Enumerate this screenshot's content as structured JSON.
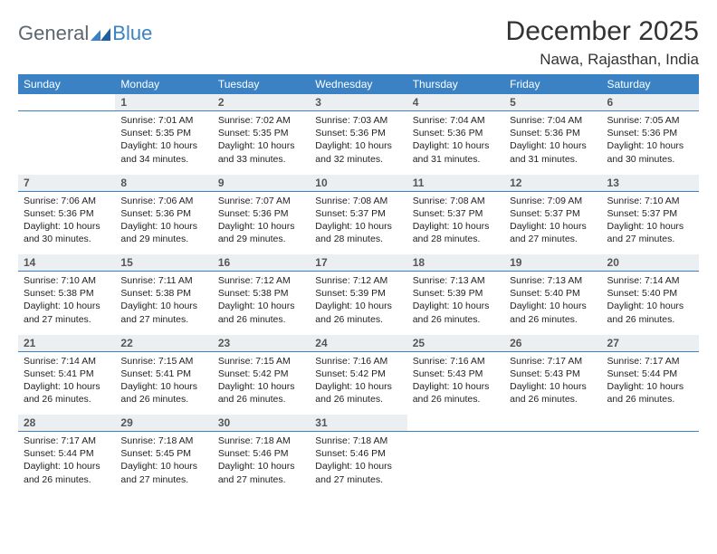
{
  "brand": {
    "general": "General",
    "blue": "Blue"
  },
  "title": "December 2025",
  "location": "Nawa, Rajasthan, India",
  "colors": {
    "header_bg": "#3b82c4",
    "header_text": "#ffffff",
    "daynum_bg": "#eceff1",
    "daynum_text": "#555555",
    "body_text": "#222222",
    "page_bg": "#ffffff",
    "logo_gray": "#5b6670",
    "logo_blue": "#3b82c4"
  },
  "weekdays": [
    "Sunday",
    "Monday",
    "Tuesday",
    "Wednesday",
    "Thursday",
    "Friday",
    "Saturday"
  ],
  "weeks": [
    {
      "nums": [
        "",
        "1",
        "2",
        "3",
        "4",
        "5",
        "6"
      ],
      "cells": [
        null,
        {
          "sunrise": "7:01 AM",
          "sunset": "5:35 PM",
          "daylight": "10 hours and 34 minutes."
        },
        {
          "sunrise": "7:02 AM",
          "sunset": "5:35 PM",
          "daylight": "10 hours and 33 minutes."
        },
        {
          "sunrise": "7:03 AM",
          "sunset": "5:36 PM",
          "daylight": "10 hours and 32 minutes."
        },
        {
          "sunrise": "7:04 AM",
          "sunset": "5:36 PM",
          "daylight": "10 hours and 31 minutes."
        },
        {
          "sunrise": "7:04 AM",
          "sunset": "5:36 PM",
          "daylight": "10 hours and 31 minutes."
        },
        {
          "sunrise": "7:05 AM",
          "sunset": "5:36 PM",
          "daylight": "10 hours and 30 minutes."
        }
      ]
    },
    {
      "nums": [
        "7",
        "8",
        "9",
        "10",
        "11",
        "12",
        "13"
      ],
      "cells": [
        {
          "sunrise": "7:06 AM",
          "sunset": "5:36 PM",
          "daylight": "10 hours and 30 minutes."
        },
        {
          "sunrise": "7:06 AM",
          "sunset": "5:36 PM",
          "daylight": "10 hours and 29 minutes."
        },
        {
          "sunrise": "7:07 AM",
          "sunset": "5:36 PM",
          "daylight": "10 hours and 29 minutes."
        },
        {
          "sunrise": "7:08 AM",
          "sunset": "5:37 PM",
          "daylight": "10 hours and 28 minutes."
        },
        {
          "sunrise": "7:08 AM",
          "sunset": "5:37 PM",
          "daylight": "10 hours and 28 minutes."
        },
        {
          "sunrise": "7:09 AM",
          "sunset": "5:37 PM",
          "daylight": "10 hours and 27 minutes."
        },
        {
          "sunrise": "7:10 AM",
          "sunset": "5:37 PM",
          "daylight": "10 hours and 27 minutes."
        }
      ]
    },
    {
      "nums": [
        "14",
        "15",
        "16",
        "17",
        "18",
        "19",
        "20"
      ],
      "cells": [
        {
          "sunrise": "7:10 AM",
          "sunset": "5:38 PM",
          "daylight": "10 hours and 27 minutes."
        },
        {
          "sunrise": "7:11 AM",
          "sunset": "5:38 PM",
          "daylight": "10 hours and 27 minutes."
        },
        {
          "sunrise": "7:12 AM",
          "sunset": "5:38 PM",
          "daylight": "10 hours and 26 minutes."
        },
        {
          "sunrise": "7:12 AM",
          "sunset": "5:39 PM",
          "daylight": "10 hours and 26 minutes."
        },
        {
          "sunrise": "7:13 AM",
          "sunset": "5:39 PM",
          "daylight": "10 hours and 26 minutes."
        },
        {
          "sunrise": "7:13 AM",
          "sunset": "5:40 PM",
          "daylight": "10 hours and 26 minutes."
        },
        {
          "sunrise": "7:14 AM",
          "sunset": "5:40 PM",
          "daylight": "10 hours and 26 minutes."
        }
      ]
    },
    {
      "nums": [
        "21",
        "22",
        "23",
        "24",
        "25",
        "26",
        "27"
      ],
      "cells": [
        {
          "sunrise": "7:14 AM",
          "sunset": "5:41 PM",
          "daylight": "10 hours and 26 minutes."
        },
        {
          "sunrise": "7:15 AM",
          "sunset": "5:41 PM",
          "daylight": "10 hours and 26 minutes."
        },
        {
          "sunrise": "7:15 AM",
          "sunset": "5:42 PM",
          "daylight": "10 hours and 26 minutes."
        },
        {
          "sunrise": "7:16 AM",
          "sunset": "5:42 PM",
          "daylight": "10 hours and 26 minutes."
        },
        {
          "sunrise": "7:16 AM",
          "sunset": "5:43 PM",
          "daylight": "10 hours and 26 minutes."
        },
        {
          "sunrise": "7:17 AM",
          "sunset": "5:43 PM",
          "daylight": "10 hours and 26 minutes."
        },
        {
          "sunrise": "7:17 AM",
          "sunset": "5:44 PM",
          "daylight": "10 hours and 26 minutes."
        }
      ]
    },
    {
      "nums": [
        "28",
        "29",
        "30",
        "31",
        "",
        "",
        ""
      ],
      "cells": [
        {
          "sunrise": "7:17 AM",
          "sunset": "5:44 PM",
          "daylight": "10 hours and 26 minutes."
        },
        {
          "sunrise": "7:18 AM",
          "sunset": "5:45 PM",
          "daylight": "10 hours and 27 minutes."
        },
        {
          "sunrise": "7:18 AM",
          "sunset": "5:46 PM",
          "daylight": "10 hours and 27 minutes."
        },
        {
          "sunrise": "7:18 AM",
          "sunset": "5:46 PM",
          "daylight": "10 hours and 27 minutes."
        },
        null,
        null,
        null
      ]
    }
  ],
  "labels": {
    "sunrise": "Sunrise:",
    "sunset": "Sunset:",
    "daylight": "Daylight:"
  }
}
